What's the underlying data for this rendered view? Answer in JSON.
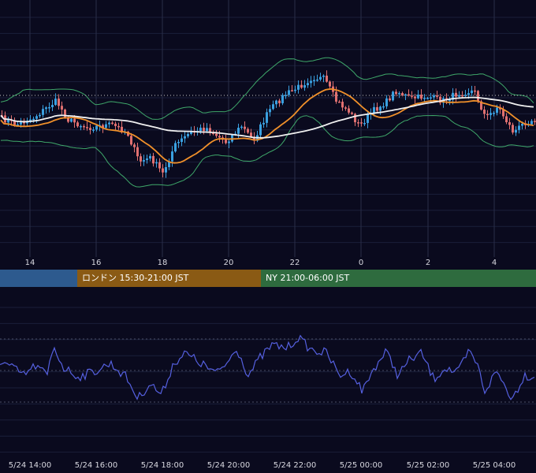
{
  "chart_data": [
    {
      "type": "candlestick",
      "panel": "price",
      "x_ticks": [
        "14",
        "16",
        "18",
        "20",
        "22",
        "0",
        "2",
        "4"
      ],
      "overlays": [
        {
          "type": "bollinger_bands",
          "color": "#3fa86a"
        },
        {
          "type": "moving_average",
          "color": "#f0902a"
        },
        {
          "type": "moving_average",
          "color": "#f0f0f0"
        },
        {
          "type": "horizontal_level",
          "style": "dotted",
          "color": "#c8c8c8"
        }
      ],
      "up_color": "#3aa0e0",
      "down_color": "#e07070",
      "grid": true
    },
    {
      "type": "line",
      "panel": "oscillator",
      "series_color": "#5560e0",
      "x_ticks": [
        "5/24 14:00",
        "5/24 16:00",
        "5/24 18:00",
        "5/24 20:00",
        "5/24 22:00",
        "5/25 00:00",
        "5/25 02:00",
        "5/25 04:00"
      ],
      "grid": true
    }
  ],
  "sessions": [
    {
      "label": "",
      "color": "#2d5a8e"
    },
    {
      "label": "ロンドン 15:30-21:00 JST",
      "color": "#8a5a14"
    },
    {
      "label": "NY 21:00-06:00 JST",
      "color": "#2e6b3e"
    }
  ]
}
